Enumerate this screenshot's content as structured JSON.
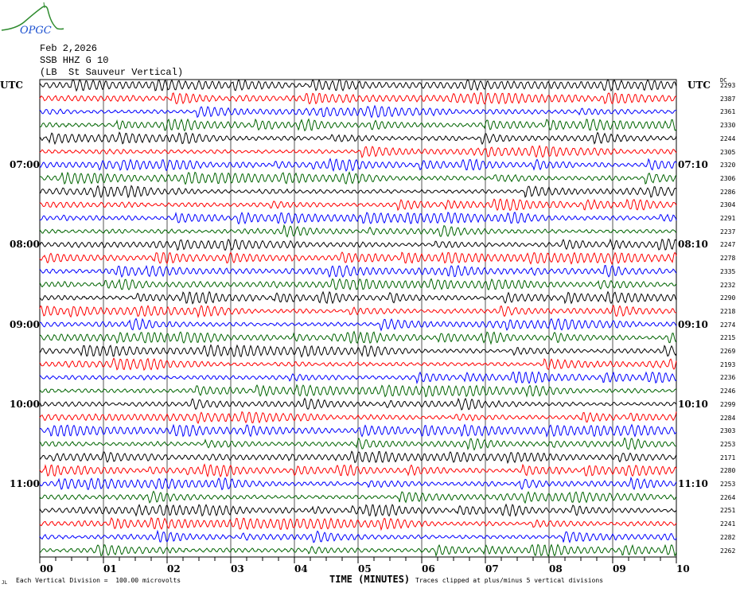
{
  "logo_text": "OPGC",
  "header": {
    "date": "Feb 2,2026",
    "station": "SSB HHZ G 10",
    "description": "(LB  St Sauveur Vertical)"
  },
  "left_utc_label": "UTC",
  "right_utc_label": "UTC",
  "dc_label": "DC",
  "footer": {
    "corner_mark": "JL",
    "vertical_division": "Each Vertical Division =  100.00 microvolts",
    "clip_note": "Traces clipped at plus/minus 5 vertical divisions"
  },
  "colors": {
    "trace_cycle": [
      "#000000",
      "#ff0000",
      "#0000ff",
      "#006400"
    ],
    "grid": "#000000",
    "logo_green": "#2e8b2e",
    "logo_blue": "#1a4fd0"
  },
  "chart_data": {
    "type": "line",
    "title": "SSB HHZ G 10 helicorder",
    "xlabel": "TIME (MINUTES)",
    "x_ticks": [
      "00",
      "01",
      "02",
      "03",
      "04",
      "05",
      "06",
      "07",
      "08",
      "09",
      "10"
    ],
    "xlim": [
      0,
      10
    ],
    "rows_per_hour": 6,
    "left_hour_labels": [
      {
        "row": 6,
        "text": "07:00"
      },
      {
        "row": 12,
        "text": "08:00"
      },
      {
        "row": 18,
        "text": "09:00"
      },
      {
        "row": 24,
        "text": "10:00"
      },
      {
        "row": 30,
        "text": "11:00"
      }
    ],
    "right_hour_labels": [
      {
        "row": 6,
        "text": "07:10"
      },
      {
        "row": 12,
        "text": "08:10"
      },
      {
        "row": 18,
        "text": "09:10"
      },
      {
        "row": 24,
        "text": "10:10"
      },
      {
        "row": 30,
        "text": "11:10"
      }
    ],
    "dc_offsets": [
      2293,
      2387,
      2361,
      2330,
      2244,
      2305,
      2320,
      2306,
      2286,
      2304,
      2291,
      2237,
      2247,
      2278,
      2335,
      2232,
      2290,
      2218,
      2274,
      2215,
      2269,
      2193,
      2236,
      2246,
      2299,
      2284,
      2303,
      2253,
      2171,
      2280,
      2253,
      2264,
      2251,
      2241,
      2282,
      2262
    ]
  }
}
